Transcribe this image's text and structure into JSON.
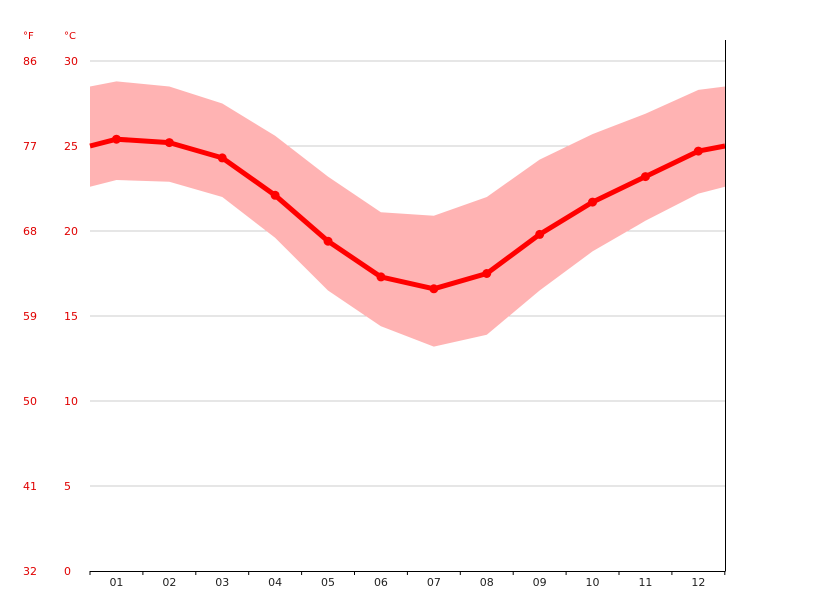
{
  "chart_data": {
    "type": "line",
    "categories": [
      "01",
      "02",
      "03",
      "04",
      "05",
      "06",
      "07",
      "08",
      "09",
      "10",
      "11",
      "12"
    ],
    "series": [
      {
        "role": "mean",
        "values": [
          25.4,
          25.2,
          24.3,
          22.1,
          19.4,
          17.3,
          16.6,
          17.5,
          19.8,
          21.7,
          23.2,
          24.7
        ]
      },
      {
        "role": "max",
        "values": [
          28.8,
          28.5,
          27.5,
          25.6,
          23.2,
          21.1,
          20.9,
          22.0,
          24.2,
          25.7,
          26.9,
          28.3
        ]
      },
      {
        "role": "min",
        "values": [
          23.0,
          22.9,
          22.0,
          19.6,
          16.5,
          14.4,
          13.2,
          13.9,
          16.5,
          18.8,
          20.6,
          22.2
        ]
      }
    ],
    "edge_values": {
      "mean": [
        25.0,
        25.0
      ],
      "max": [
        28.5,
        28.5
      ],
      "min": [
        22.6,
        22.6
      ]
    },
    "y_left_unit": "°F",
    "y_right_unit": "°C",
    "y_ticks_c": [
      "30",
      "25",
      "20",
      "15",
      "10",
      "5",
      "0"
    ],
    "y_ticks_f": [
      "86",
      "77",
      "68",
      "59",
      "50",
      "41",
      "32"
    ],
    "ylim": [
      0,
      30
    ],
    "grid": true,
    "colors": {
      "line": "#ff0000",
      "band": "#ffb3b3",
      "label": "#e00000",
      "grid": "#cccccc",
      "axis": "#000000"
    }
  }
}
